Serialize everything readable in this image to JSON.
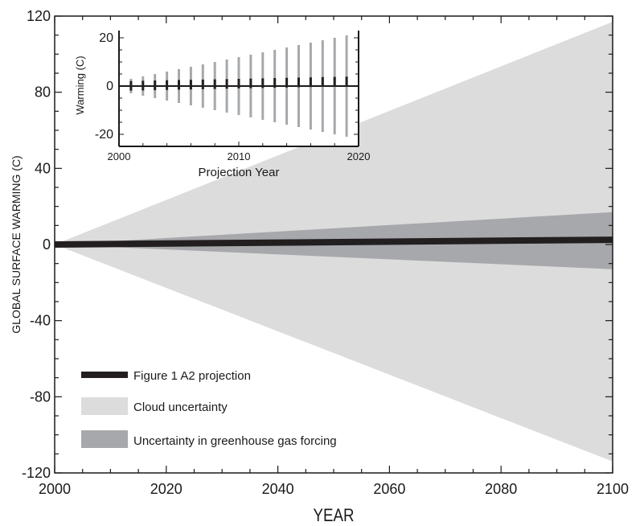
{
  "chart_data": [
    {
      "type": "area",
      "xlabel": "YEAR",
      "ylabel": "GLOBAL SURFACE WARMING (C)",
      "xlim": [
        2000,
        2100
      ],
      "ylim": [
        -120,
        120
      ],
      "xticks": [
        2000,
        2020,
        2040,
        2060,
        2080,
        2100
      ],
      "yticks": [
        120,
        80,
        40,
        0,
        -40,
        -80,
        -120
      ],
      "grid": false,
      "legend_position": "bottom-left",
      "series": [
        {
          "name": "Cloud uncertainty",
          "kind": "band",
          "color": "#dcdcdd",
          "x": [
            2000,
            2100
          ],
          "upper": [
            0,
            117
          ],
          "lower": [
            0,
            -114
          ]
        },
        {
          "name": "Uncertainty in greenhouse gas forcing",
          "kind": "band",
          "color": "#a7a8ab",
          "x": [
            2000,
            2100
          ],
          "upper": [
            0,
            17
          ],
          "lower": [
            0,
            -13
          ]
        },
        {
          "name": "Figure 1 A2 projection",
          "kind": "line",
          "color": "#231f20",
          "x": [
            2000,
            2100
          ],
          "y": [
            0,
            2.5
          ]
        }
      ]
    },
    {
      "type": "errorbar",
      "xlabel": "Projection Year",
      "ylabel": "Warming (C)",
      "xlim": [
        2000,
        2020
      ],
      "ylim": [
        -25,
        23
      ],
      "xticks": [
        2000,
        2010,
        2020
      ],
      "yticks": [
        20,
        0,
        -20
      ],
      "grid": false,
      "legend_position": "none",
      "x": [
        2001,
        2002,
        2003,
        2004,
        2005,
        2006,
        2007,
        2008,
        2009,
        2010,
        2011,
        2012,
        2013,
        2014,
        2015,
        2016,
        2017,
        2018,
        2019
      ],
      "center": [
        0.1,
        0.2,
        0.3,
        0.4,
        0.5,
        0.6,
        0.7,
        0.8,
        0.9,
        1.0,
        1.1,
        1.2,
        1.3,
        1.4,
        1.5,
        1.6,
        1.7,
        1.8,
        1.9
      ],
      "upper": [
        3,
        4,
        5,
        6,
        7,
        8,
        9,
        10,
        11,
        12,
        13,
        14,
        15,
        16,
        17,
        18,
        19,
        20,
        21
      ],
      "lower": [
        -3,
        -4,
        -5,
        -6,
        -7,
        -8,
        -9,
        -10,
        -11,
        -12,
        -13,
        -14,
        -15,
        -16,
        -17,
        -18,
        -19,
        -20,
        -21
      ],
      "band_color": "#a7a8ab",
      "center_color": "#231f20"
    }
  ],
  "legend": [
    {
      "label": "Figure 1 A2 projection",
      "swatch": "line",
      "color": "#231f20"
    },
    {
      "label": "Cloud uncertainty",
      "swatch": "box",
      "color": "#dcdcdd"
    },
    {
      "label": "Uncertainty in greenhouse gas forcing",
      "swatch": "box",
      "color": "#a7a8ab"
    }
  ]
}
